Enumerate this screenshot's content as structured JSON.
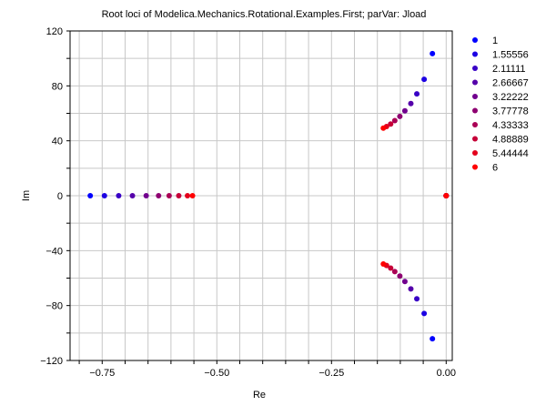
{
  "chart_data": {
    "type": "scatter",
    "title": "Root loci of Modelica.Mechanics.Rotational.Examples.First; parVar: Jload",
    "xlabel": "Re",
    "ylabel": "Im",
    "xlim": [
      -0.82,
      0.0133
    ],
    "ylim": [
      -120,
      120
    ],
    "x_ticks": [
      -0.75,
      -0.5,
      -0.25,
      0.0
    ],
    "x_tick_labels": [
      "−0.75",
      "−0.50",
      "−0.25",
      "0.00"
    ],
    "y_ticks": [
      -120,
      -80,
      -40,
      0,
      40,
      80,
      120
    ],
    "y_tick_labels": [
      "−120",
      "−80",
      "−40",
      "0",
      "40",
      "80",
      "120"
    ],
    "grid": true,
    "legend_position": "right",
    "series": [
      {
        "name": "1",
        "color": "#0000ff",
        "points": [
          [
            -0.776,
            0
          ],
          [
            -0.03,
            103.5
          ],
          [
            -0.03,
            -104.2
          ],
          [
            0.0,
            0
          ]
        ]
      },
      {
        "name": "1.55556",
        "color": "#1c00e3",
        "points": [
          [
            -0.745,
            0
          ],
          [
            -0.048,
            84.8
          ],
          [
            -0.048,
            -85.8
          ],
          [
            0.0,
            0
          ]
        ]
      },
      {
        "name": "2.11111",
        "color": "#3800c6",
        "points": [
          [
            -0.714,
            0
          ],
          [
            -0.064,
            74.2
          ],
          [
            -0.064,
            -75.1
          ],
          [
            0.0,
            0
          ]
        ]
      },
      {
        "name": "2.66667",
        "color": "#5500aa",
        "points": [
          [
            -0.684,
            0
          ],
          [
            -0.077,
            67.1
          ],
          [
            -0.077,
            -67.9
          ],
          [
            0.0,
            0
          ]
        ]
      },
      {
        "name": "3.22222",
        "color": "#71008e",
        "points": [
          [
            -0.654,
            0
          ],
          [
            -0.09,
            61.8
          ],
          [
            -0.09,
            -62.5
          ],
          [
            0.0,
            0
          ]
        ]
      },
      {
        "name": "3.77778",
        "color": "#8e0071",
        "points": [
          [
            -0.627,
            0
          ],
          [
            -0.101,
            57.8
          ],
          [
            -0.101,
            -58.5
          ],
          [
            0.0,
            0
          ]
        ]
      },
      {
        "name": "4.33333",
        "color": "#aa0055",
        "points": [
          [
            -0.604,
            0
          ],
          [
            -0.112,
            54.7
          ],
          [
            -0.112,
            -55.3
          ],
          [
            0.0,
            0
          ]
        ]
      },
      {
        "name": "4.88889",
        "color": "#c60038",
        "points": [
          [
            -0.583,
            0
          ],
          [
            -0.121,
            52.2
          ],
          [
            -0.121,
            -52.7
          ],
          [
            0.0,
            0
          ]
        ]
      },
      {
        "name": "5.44444",
        "color": "#e3001c",
        "points": [
          [
            -0.564,
            0
          ],
          [
            -0.13,
            50.4
          ],
          [
            -0.13,
            -50.8
          ],
          [
            0.0,
            0
          ]
        ]
      },
      {
        "name": "6",
        "color": "#ff0000",
        "points": [
          [
            -0.553,
            0
          ],
          [
            -0.137,
            49.2
          ],
          [
            -0.137,
            -49.7
          ],
          [
            0.0,
            0
          ]
        ]
      }
    ]
  }
}
